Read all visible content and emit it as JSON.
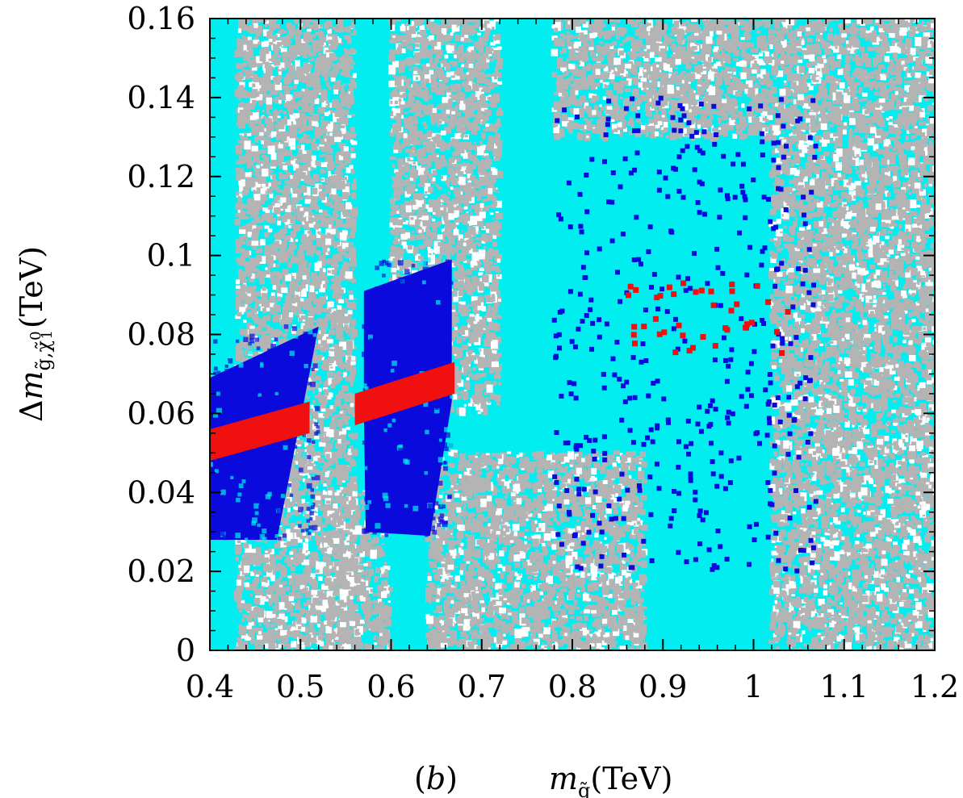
{
  "chart_data": {
    "type": "scatter",
    "panel_label": "(b)",
    "xlabel": "m_g̃(TeV)",
    "ylabel": "Δm_{g̃,χ̃₁⁰}(TeV)",
    "xlim": [
      0.4,
      1.2
    ],
    "ylim": [
      0,
      0.16
    ],
    "x_ticks": [
      "0.4",
      "0.5",
      "0.6",
      "0.7",
      "0.8",
      "0.9",
      "1",
      "1.1",
      "1.2"
    ],
    "y_ticks": [
      "0",
      "0.02",
      "0.04",
      "0.06",
      "0.08",
      "0.1",
      "0.12",
      "0.14",
      "0.16"
    ],
    "grid": false,
    "colors": {
      "background_region": "#00eef0",
      "grey_points": "#b4b4b4",
      "blue_points": "#0a0adc",
      "red_points": "#f01010",
      "white_gaps": "#ffffff"
    },
    "series": [
      {
        "color": "#00eef0",
        "description": "filled cyan region covering the full plotted range"
      },
      {
        "color": "#b4b4b4",
        "regions": [
          {
            "x": [
              0.43,
              0.56
            ],
            "y": [
              0.0,
              0.16
            ]
          },
          {
            "x": [
              0.6,
              0.72
            ],
            "y": [
              0.06,
              0.16
            ]
          },
          {
            "x": [
              0.53,
              0.6
            ],
            "y": [
              0.0,
              0.04
            ]
          },
          {
            "x": [
              0.64,
              0.88
            ],
            "y": [
              0.0,
              0.05
            ]
          },
          {
            "x": [
              1.02,
              1.2
            ],
            "y": [
              0.0,
              0.16
            ]
          },
          {
            "x": [
              0.78,
              1.02
            ],
            "y": [
              0.13,
              0.16
            ]
          }
        ]
      },
      {
        "color": "#0a0adc",
        "regions": [
          {
            "shape": "polygon",
            "points": [
              [
                0.4,
                0.069
              ],
              [
                0.52,
                0.082
              ],
              [
                0.474,
                0.028
              ],
              [
                0.4,
                0.028
              ]
            ]
          },
          {
            "shape": "polygon",
            "points": [
              [
                0.57,
                0.091
              ],
              [
                0.667,
                0.099
              ],
              [
                0.667,
                0.063
              ],
              [
                0.643,
                0.029
              ],
              [
                0.572,
                0.03
              ],
              [
                0.57,
                0.06
              ]
            ]
          },
          {
            "scatter_x": [
              0.78,
              1.07
            ],
            "scatter_y": [
              0.02,
              0.14
            ]
          }
        ]
      },
      {
        "color": "#f01010",
        "regions": [
          {
            "shape": "band",
            "points": [
              [
                0.4,
                0.052
              ],
              [
                0.51,
                0.059
              ]
            ],
            "width_y": 0.004
          },
          {
            "shape": "band",
            "points": [
              [
                0.56,
                0.061
              ],
              [
                0.67,
                0.069
              ]
            ],
            "width_y": 0.004
          },
          {
            "scatter_x": [
              0.86,
              1.04
            ],
            "scatter_y": [
              0.075,
              0.093
            ]
          }
        ]
      }
    ]
  }
}
